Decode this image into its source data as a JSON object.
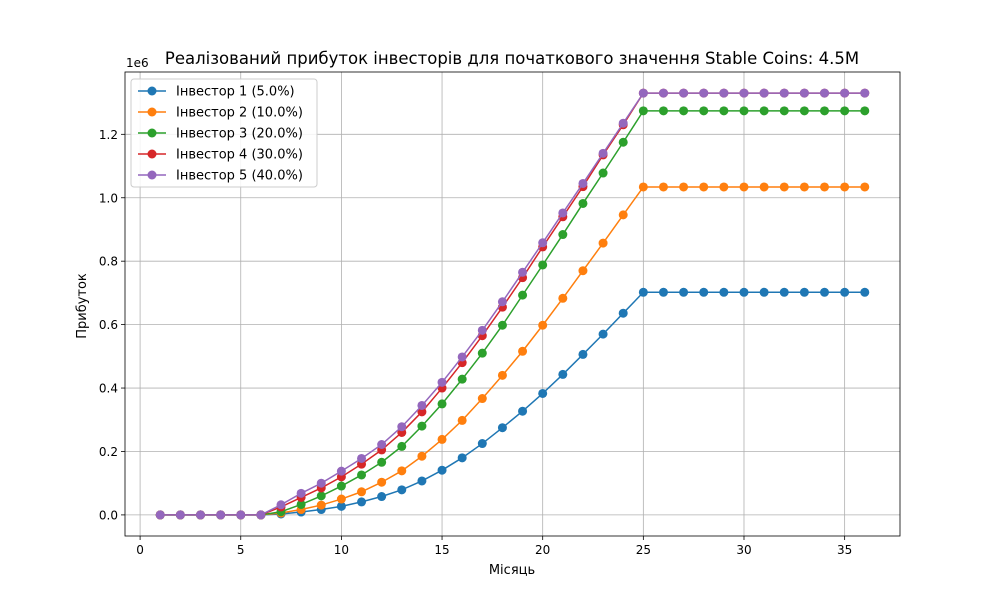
{
  "chart_data": {
    "type": "line",
    "title": "Реалізований прибуток інвесторів для початкового значення Stable Coins: 4.5M",
    "xlabel": "Місяць",
    "ylabel": "Прибуток",
    "y_offset_text": "1e6",
    "xlim": [
      -0.75,
      37.75
    ],
    "ylim": [
      -0.0665,
      1.3965
    ],
    "x_ticks": [
      0,
      5,
      10,
      15,
      20,
      25,
      30,
      35
    ],
    "x_tick_labels": [
      "0",
      "5",
      "10",
      "15",
      "20",
      "25",
      "30",
      "35"
    ],
    "y_ticks": [
      0,
      0.2,
      0.4,
      0.6,
      0.8,
      1.0,
      1.2
    ],
    "y_tick_labels": [
      "0.0",
      "0.2",
      "0.4",
      "0.6",
      "0.8",
      "1.0",
      "1.2"
    ],
    "grid": true,
    "legend_position": "top-left",
    "marker": "circle",
    "x": [
      1,
      2,
      3,
      4,
      5,
      6,
      7,
      8,
      9,
      10,
      11,
      12,
      13,
      14,
      15,
      16,
      17,
      18,
      19,
      20,
      21,
      22,
      23,
      24,
      25,
      26,
      27,
      28,
      29,
      30,
      31,
      32,
      33,
      34,
      35,
      36
    ],
    "series": [
      {
        "name": "Інвестор 1 (5.0%)",
        "color": "#1f77b4",
        "values": [
          0,
          0,
          0,
          0,
          0,
          0,
          0.003,
          0.009,
          0.017,
          0.027,
          0.041,
          0.058,
          0.079,
          0.107,
          0.141,
          0.18,
          0.225,
          0.275,
          0.327,
          0.383,
          0.443,
          0.506,
          0.57,
          0.636,
          0.702,
          0.702,
          0.702,
          0.702,
          0.702,
          0.702,
          0.702,
          0.702,
          0.702,
          0.702,
          0.702,
          0.702
        ]
      },
      {
        "name": "Інвестор 2 (10.0%)",
        "color": "#ff7f0e",
        "values": [
          0,
          0,
          0,
          0,
          0,
          0,
          0.006,
          0.017,
          0.031,
          0.05,
          0.073,
          0.103,
          0.139,
          0.185,
          0.238,
          0.298,
          0.367,
          0.44,
          0.516,
          0.598,
          0.683,
          0.77,
          0.857,
          0.946,
          1.034,
          1.034,
          1.034,
          1.034,
          1.034,
          1.034,
          1.034,
          1.034,
          1.034,
          1.034,
          1.034,
          1.034
        ]
      },
      {
        "name": "Інвестор 3 (20.0%)",
        "color": "#2ca02c",
        "values": [
          0,
          0,
          0,
          0,
          0,
          0,
          0.01,
          0.033,
          0.06,
          0.091,
          0.126,
          0.166,
          0.216,
          0.28,
          0.35,
          0.428,
          0.51,
          0.598,
          0.693,
          0.788,
          0.884,
          0.982,
          1.078,
          1.175,
          1.274,
          1.274,
          1.274,
          1.274,
          1.274,
          1.274,
          1.274,
          1.274,
          1.274,
          1.274,
          1.274,
          1.274
        ]
      },
      {
        "name": "Інвестор 4 (30.0%)",
        "color": "#d62728",
        "values": [
          0,
          0,
          0,
          0,
          0,
          0,
          0.025,
          0.055,
          0.085,
          0.12,
          0.16,
          0.205,
          0.26,
          0.325,
          0.4,
          0.48,
          0.565,
          0.655,
          0.748,
          0.845,
          0.94,
          1.035,
          1.135,
          1.23,
          1.33,
          1.33,
          1.33,
          1.33,
          1.33,
          1.33,
          1.33,
          1.33,
          1.33,
          1.33,
          1.33,
          1.33
        ]
      },
      {
        "name": "Інвестор 5 (40.0%)",
        "color": "#9467bd",
        "values": [
          0,
          0,
          0,
          0,
          0,
          0,
          0.032,
          0.068,
          0.1,
          0.138,
          0.178,
          0.222,
          0.278,
          0.345,
          0.418,
          0.498,
          0.582,
          0.672,
          0.765,
          0.858,
          0.952,
          1.045,
          1.14,
          1.235,
          1.33,
          1.33,
          1.33,
          1.33,
          1.33,
          1.33,
          1.33,
          1.33,
          1.33,
          1.33,
          1.33,
          1.33
        ]
      }
    ]
  }
}
